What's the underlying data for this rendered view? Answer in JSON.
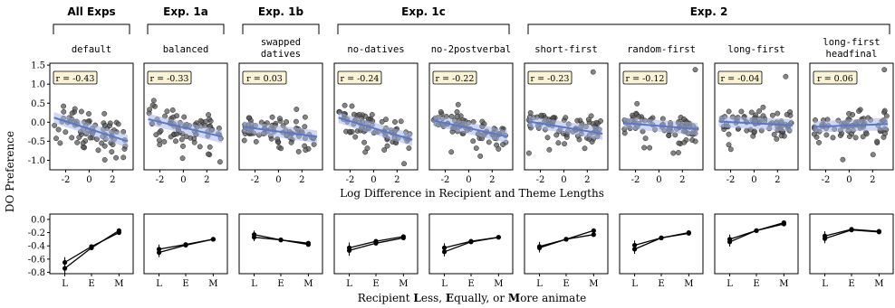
{
  "groups": [
    {
      "label": "All Exps",
      "panels": [
        0,
        0
      ]
    },
    {
      "label": "Exp. 1a",
      "panels": [
        1,
        1
      ]
    },
    {
      "label": "Exp. 1b",
      "panels": [
        2,
        2
      ]
    },
    {
      "label": "Exp. 1c",
      "panels": [
        3,
        4
      ]
    },
    {
      "label": "Exp. 2",
      "panels": [
        5,
        8
      ]
    }
  ],
  "panels": [
    {
      "title": [
        "default"
      ],
      "r": "r = -0.43"
    },
    {
      "title": [
        "balanced"
      ],
      "r": "r = -0.33"
    },
    {
      "title": [
        "swapped",
        "datives"
      ],
      "r": "r = 0.03"
    },
    {
      "title": [
        "no-datives"
      ],
      "r": "r = -0.24"
    },
    {
      "title": [
        "no-2postverbal"
      ],
      "r": "r = -0.22"
    },
    {
      "title": [
        "short-first"
      ],
      "r": "r = -0.23"
    },
    {
      "title": [
        "random-first"
      ],
      "r": "r = -0.12"
    },
    {
      "title": [
        "long-first"
      ],
      "r": "r = -0.04"
    },
    {
      "title": [
        "long-first",
        "headfinal"
      ],
      "r": "r = 0.06"
    }
  ],
  "labels": {
    "ylabel": "DO Preference",
    "xlabel_top": "Log Difference in Recipient and Theme Lengths",
    "xlabel_bottom_parts": [
      {
        "t": "Recipient ",
        "b": false
      },
      {
        "t": "L",
        "b": true
      },
      {
        "t": "ess, ",
        "b": false
      },
      {
        "t": "E",
        "b": true
      },
      {
        "t": "qually, or ",
        "b": false
      },
      {
        "t": "M",
        "b": true
      },
      {
        "t": "ore animate",
        "b": false
      }
    ]
  },
  "chart_data": [
    {
      "type": "scatter",
      "title": "",
      "xlabel": "Log Difference in Recipient and Theme Lengths",
      "ylabel": "DO Preference",
      "xlim": [
        -3.2,
        3.6
      ],
      "ylim": [
        -1.25,
        1.55
      ],
      "xticks": [
        -2,
        0,
        2
      ],
      "xtick_labels": [
        "-2",
        "0",
        "2"
      ],
      "yticks": [
        1.5,
        1.0,
        0.5,
        0.0,
        -0.5,
        -1.0
      ],
      "ytick_labels": [
        "1.5",
        "1.0",
        "0.5",
        "0.0",
        "-0.5",
        "-1.0"
      ],
      "regression": [
        {
          "panel": "default",
          "r": -0.43,
          "x": [
            -3.0,
            3.3
          ],
          "y": [
            0.12,
            -0.5
          ]
        },
        {
          "panel": "balanced",
          "r": -0.33,
          "x": [
            -3.0,
            3.3
          ],
          "y": [
            0.08,
            -0.38
          ]
        },
        {
          "panel": "swapped datives",
          "r": 0.03,
          "x": [
            -3.0,
            3.3
          ],
          "y": [
            -0.12,
            -0.38
          ]
        },
        {
          "panel": "no-datives",
          "r": -0.24,
          "x": [
            -3.0,
            3.3
          ],
          "y": [
            0.12,
            -0.46
          ]
        },
        {
          "panel": "no-2postverbal",
          "r": -0.22,
          "x": [
            -3.0,
            3.3
          ],
          "y": [
            0.05,
            -0.38
          ]
        },
        {
          "panel": "short-first",
          "r": -0.23,
          "x": [
            -3.0,
            3.3
          ],
          "y": [
            0.02,
            -0.3
          ]
        },
        {
          "panel": "random-first",
          "r": -0.12,
          "x": [
            -3.0,
            3.3
          ],
          "y": [
            -0.02,
            -0.18
          ]
        },
        {
          "panel": "long-first",
          "r": -0.04,
          "x": [
            -3.0,
            3.3
          ],
          "y": [
            0.02,
            -0.08
          ]
        },
        {
          "panel": "long-first headfinal",
          "r": 0.06,
          "x": [
            -3.0,
            3.3
          ],
          "y": [
            -0.12,
            -0.05
          ]
        }
      ],
      "outliers": [
        {
          "panel": "short-first",
          "x": 2.5,
          "y": 1.32
        },
        {
          "panel": "random-first",
          "x": 3.1,
          "y": 1.38
        },
        {
          "panel": "long-first",
          "x": 2.7,
          "y": 1.2
        },
        {
          "panel": "long-first headfinal",
          "x": 3.0,
          "y": 1.38
        }
      ],
      "points_per_panel": 80
    },
    {
      "type": "line",
      "title": "",
      "xlabel": "Recipient Less, Equally, or More animate",
      "ylabel": "DO Preference",
      "categories": [
        "L",
        "E",
        "M"
      ],
      "ylim": [
        -0.82,
        0.08
      ],
      "yticks": [
        0.0,
        -0.2,
        -0.4,
        -0.6,
        -0.8
      ],
      "ytick_labels": [
        "0.0",
        "-0.2",
        "-0.4",
        "-0.6",
        "-0.8"
      ],
      "series": [
        {
          "panel": "default",
          "lines": [
            [
              -0.65,
              -0.41,
              -0.2
            ],
            [
              -0.74,
              -0.43,
              -0.17
            ]
          ],
          "err": [
            0.08,
            0.03,
            0.03
          ]
        },
        {
          "panel": "balanced",
          "lines": [
            [
              -0.45,
              -0.38,
              -0.3
            ],
            [
              -0.5,
              -0.39,
              -0.3
            ]
          ],
          "err": [
            0.07,
            0.03,
            0.02
          ]
        },
        {
          "panel": "swapped datives",
          "lines": [
            [
              -0.23,
              -0.31,
              -0.36
            ],
            [
              -0.27,
              -0.31,
              -0.38
            ]
          ],
          "err": [
            0.06,
            0.02,
            0.02
          ]
        },
        {
          "panel": "no-datives",
          "lines": [
            [
              -0.43,
              -0.33,
              -0.26
            ],
            [
              -0.47,
              -0.36,
              -0.28
            ]
          ],
          "err": [
            0.08,
            0.03,
            0.03
          ]
        },
        {
          "panel": "no-2postverbal",
          "lines": [
            [
              -0.43,
              -0.33,
              -0.27
            ],
            [
              -0.49,
              -0.34,
              -0.27
            ]
          ],
          "err": [
            0.07,
            0.03,
            0.02
          ]
        },
        {
          "panel": "short-first",
          "lines": [
            [
              -0.41,
              -0.3,
              -0.17
            ],
            [
              -0.43,
              -0.3,
              -0.23
            ]
          ],
          "err": [
            0.07,
            0.02,
            0.03
          ]
        },
        {
          "panel": "random-first",
          "lines": [
            [
              -0.39,
              -0.28,
              -0.2
            ],
            [
              -0.45,
              -0.28,
              -0.21
            ]
          ],
          "err": [
            0.07,
            0.02,
            0.02
          ]
        },
        {
          "panel": "long-first",
          "lines": [
            [
              -0.3,
              -0.17,
              -0.05
            ],
            [
              -0.34,
              -0.17,
              -0.07
            ]
          ],
          "err": [
            0.07,
            0.02,
            0.02
          ]
        },
        {
          "panel": "long-first headfinal",
          "lines": [
            [
              -0.25,
              -0.15,
              -0.18
            ],
            [
              -0.29,
              -0.16,
              -0.19
            ]
          ],
          "err": [
            0.07,
            0.02,
            0.02
          ]
        }
      ]
    }
  ]
}
